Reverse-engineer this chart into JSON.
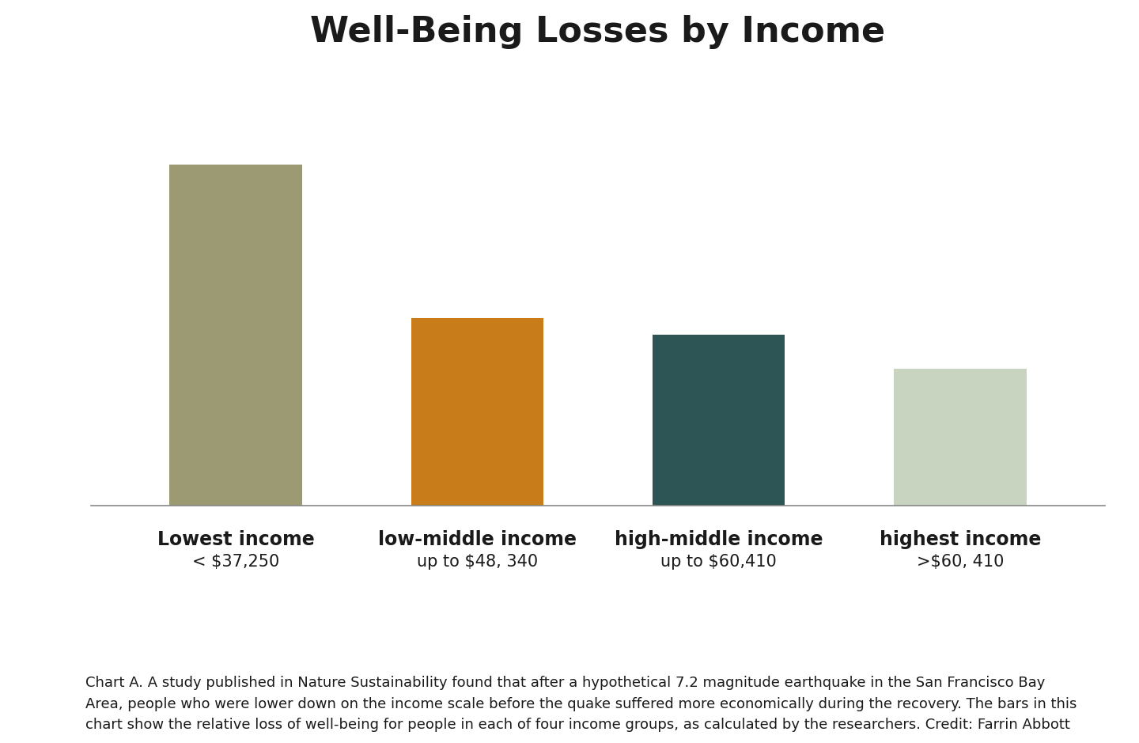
{
  "title": "Well-Being Losses by Income",
  "categories": [
    "Lowest income",
    "low-middle income",
    "high-middle income",
    "highest income"
  ],
  "sublabels": [
    "< $37,250",
    "up to $48, 340",
    "up to $60,410",
    ">$60, 410"
  ],
  "values": [
    100,
    55,
    50,
    40
  ],
  "bar_colors": [
    "#9c9a72",
    "#c97d1a",
    "#2e5555",
    "#c9d4c0"
  ],
  "background_color": "#ffffff",
  "title_fontsize": 32,
  "label_fontsize": 17,
  "sublabel_fontsize": 15,
  "caption": "Chart A. A study published in Nature Sustainability found that after a hypothetical 7.2 magnitude earthquake in the San Francisco Bay\nArea, people who were lower down on the income scale before the quake suffered more economically during the recovery. The bars in this\nchart show the relative loss of well-being for people in each of four income groups, as calculated by the researchers. Credit: Farrin Abbott",
  "caption_fontsize": 13,
  "bar_width": 0.55,
  "ylim": [
    0,
    120
  ]
}
